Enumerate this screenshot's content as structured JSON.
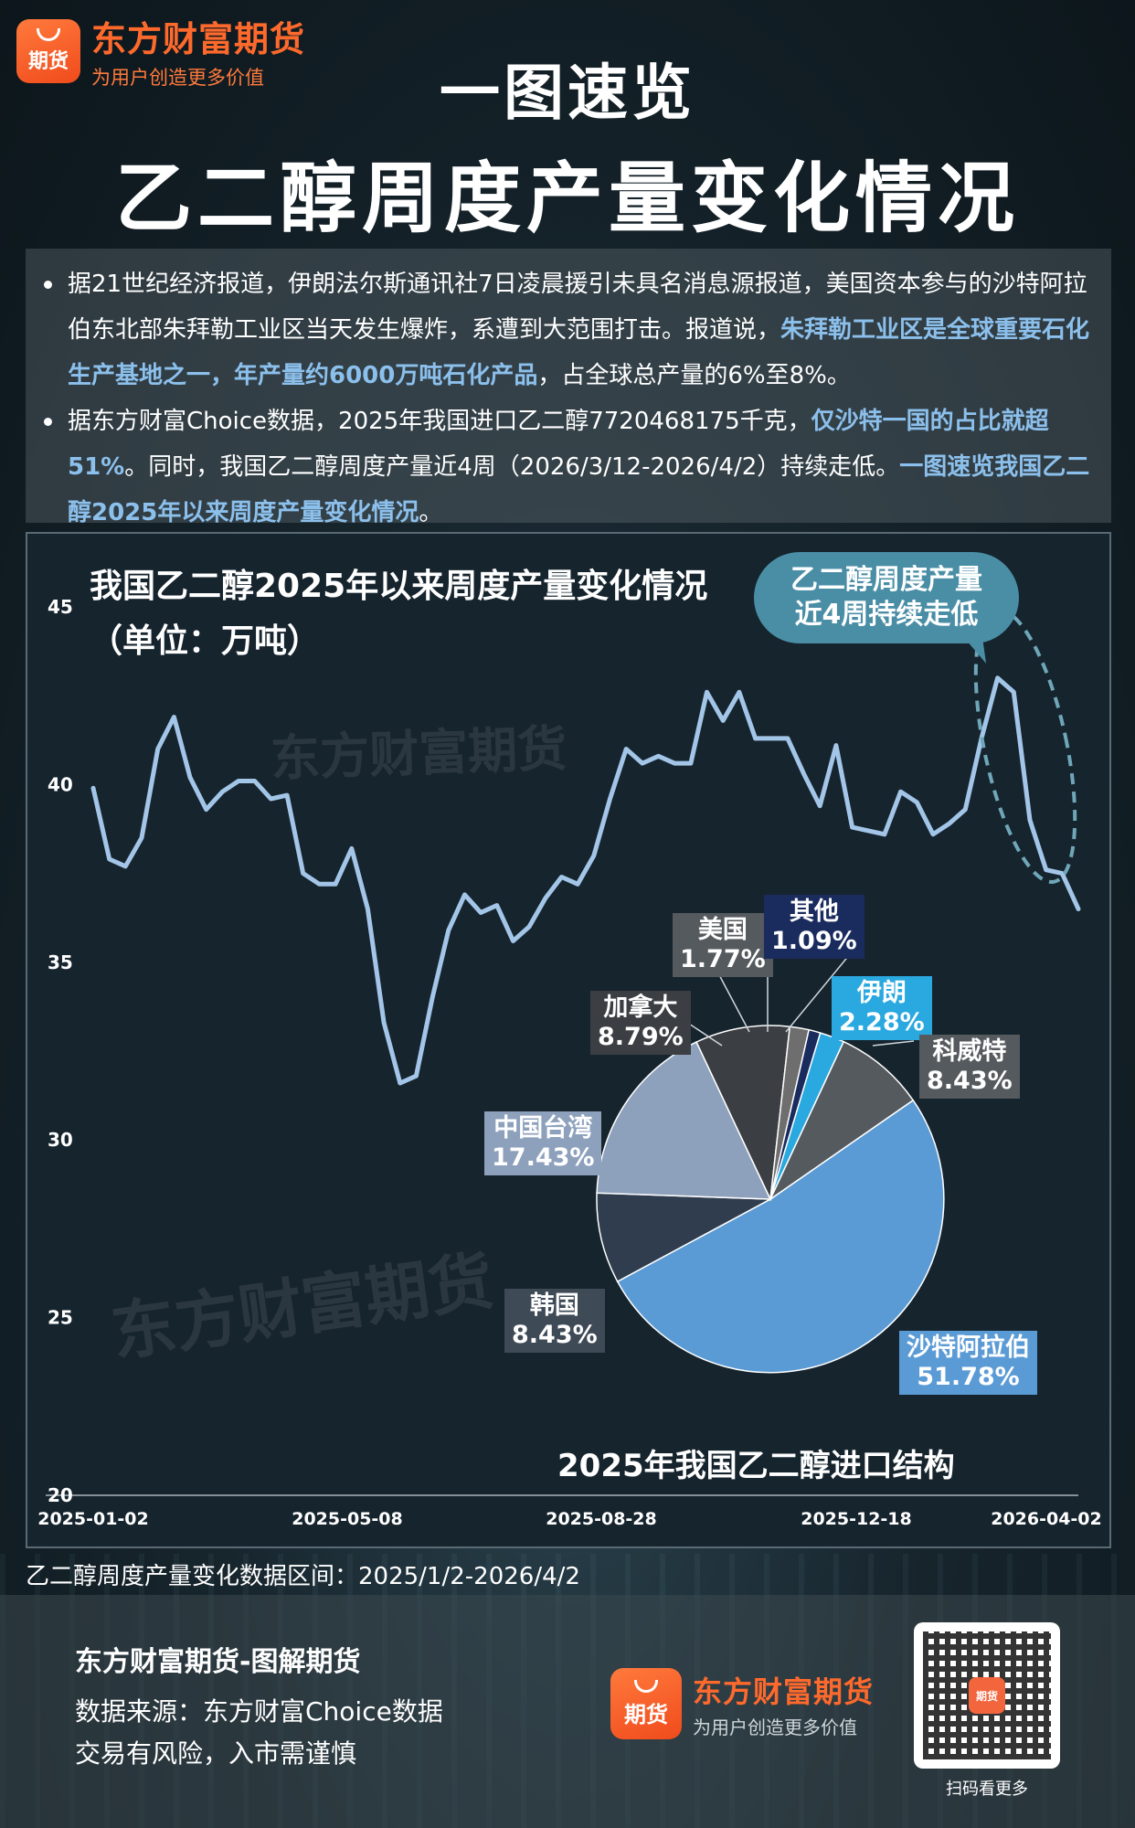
{
  "brand": {
    "name": "东方财富期货",
    "slogan": "为用户创造更多价值",
    "logo_text": "期货"
  },
  "headline": {
    "line1": "一图速览",
    "line2": "乙二醇周度产量变化情况"
  },
  "intro": {
    "p1_a": "据21世纪经济报道，伊朗法尔斯通讯社7日凌晨援引未具名消息源报道，美国资本参与的沙特阿拉伯东北部朱拜勒工业区当天发生爆炸，系遭到大范围打击。报道说，",
    "p1_hl": "朱拜勒工业区是全球重要石化生产基地之一，年产量约6000万吨石化产品",
    "p1_b": "，占全球总产量的6%至8%。",
    "p2_a": "据东方财富Choice数据，2025年我国进口乙二醇7720468175千克，",
    "p2_hl1": "仅沙特一国的占比就超51%",
    "p2_b": "。同时，我国乙二醇周度产量近4周（2026/3/12-2026/4/2）持续走低。",
    "p2_hl2": "一图速览我国乙二醇2025年以来周度产量变化情况",
    "p2_c": "。"
  },
  "watermark": "东方财富期货",
  "bubble": {
    "line1": "乙二醇周度产量",
    "line2": "近4周持续走低"
  },
  "range_note": "乙二醇周度产量变化数据区间：2025/1/2-2026/4/2",
  "colors": {
    "line": "#a3c6e8",
    "highlight": "#8cc0ec",
    "panel": "#16242e",
    "accent": "#f04b1c"
  },
  "chart_data": [
    {
      "type": "line",
      "title": "我国乙二醇2025年以来周度产量变化情况",
      "subtitle": "（单位：万吨）",
      "ylim": [
        20,
        45
      ],
      "y_ticks": [
        "45",
        "40",
        "35",
        "30",
        "25",
        "20"
      ],
      "x_ticks": [
        "2025-01-02",
        "2025-05-08",
        "2025-08-28",
        "2025-12-18",
        "2026-04-02"
      ],
      "series": [
        {
          "values": [
            39.9,
            37.9,
            37.7,
            38.5,
            41.0,
            41.9,
            40.2,
            39.3,
            39.8,
            40.1,
            40.1,
            39.6,
            39.7,
            37.5,
            37.2,
            37.2,
            38.2,
            36.5,
            33.3,
            31.6,
            31.8,
            34.0,
            35.9,
            36.9,
            36.4,
            36.6,
            35.6,
            36.0,
            36.8,
            37.4,
            37.2,
            38.0,
            39.6,
            41.0,
            40.6,
            40.8,
            40.6,
            40.6,
            42.6,
            41.8,
            42.6,
            41.3,
            41.3,
            41.3,
            40.3,
            39.4,
            41.1,
            38.8,
            38.7,
            38.6,
            39.8,
            39.5,
            38.6,
            38.9,
            39.3,
            41.3,
            43.0,
            42.6,
            39.0,
            37.6,
            37.5,
            36.5
          ]
        }
      ],
      "grid": false
    },
    {
      "type": "pie",
      "title": "2025年我国乙二醇进口结构",
      "slices": [
        {
          "label": "沙特阿拉伯",
          "value": 51.78,
          "text": "51.78%",
          "color": "#5b9bd5"
        },
        {
          "label": "韩国",
          "value": 8.43,
          "text": "8.43%",
          "color": "#2f3d4e"
        },
        {
          "label": "中国台湾",
          "value": 17.43,
          "text": "17.43%",
          "color": "#8ea1bc"
        },
        {
          "label": "加拿大",
          "value": 8.79,
          "text": "8.79%",
          "color": "#3b3e42"
        },
        {
          "label": "美国",
          "value": 1.77,
          "text": "1.77%",
          "color": "#6e6e6e"
        },
        {
          "label": "其他",
          "value": 1.09,
          "text": "1.09%",
          "color": "#1a2b5e"
        },
        {
          "label": "伊朗",
          "value": 2.28,
          "text": "2.28%",
          "color": "#2aa8e0"
        },
        {
          "label": "科威特",
          "value": 8.43,
          "text": "8.43%",
          "color": "#555a5e"
        }
      ]
    }
  ],
  "footer": {
    "title": "东方财富期货-图解期货",
    "source": "数据来源：东方财富Choice数据",
    "risk": "交易有风险，入市需谨慎",
    "qr_caption": "扫码看更多"
  }
}
